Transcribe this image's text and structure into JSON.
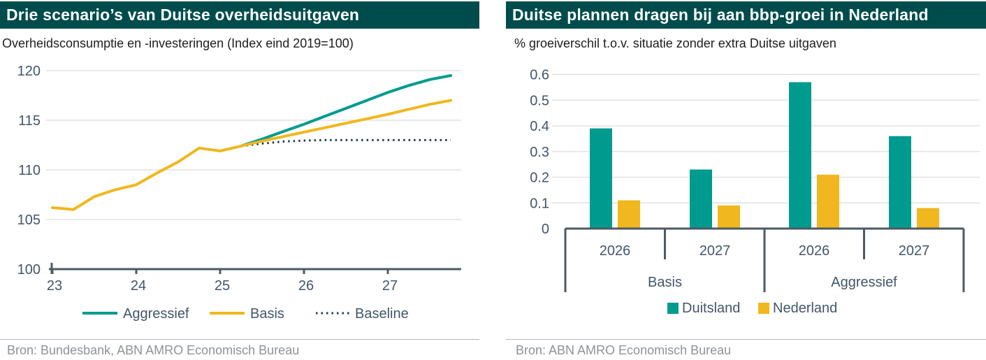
{
  "colors": {
    "header_bg": "#004c4c",
    "header_text": "#ffffff",
    "teal": "#009b8f",
    "yellow": "#f0b81e",
    "baseline_dotted": "#1d3c50",
    "axis_dark": "#4d5a63",
    "tick_text": "#42566a",
    "gridline": "#e2e2e2",
    "subtitle_text": "#1d1d1d",
    "source_text": "#8e9397"
  },
  "left_panel": {
    "title": "Drie scenario’s van Duitse overheidsuitgaven",
    "subtitle": "Overheidsconsumptie en -investeringen (Index eind 2019=100)",
    "source": "Bron: Bundesbank, ABN AMRO Economisch Bureau"
  },
  "right_panel": {
    "title": "Duitse plannen dragen bij aan bbp-groei in Nederland",
    "subtitle": "% groeiverschil t.o.v. situatie zonder extra Duitse uitgaven",
    "source": "Bron: ABN AMRO Economisch Bureau"
  },
  "chart_data": [
    {
      "type": "line",
      "title": "Drie scenario's van Duitse overheidsuitgaven",
      "subtitle": "Overheidsconsumptie en -investeringen (Index eind 2019=100)",
      "x_ticks": [
        23,
        24,
        25,
        26,
        27
      ],
      "y_ticks": [
        100,
        105,
        110,
        115,
        120
      ],
      "xlim": [
        23,
        27.85
      ],
      "ylim": [
        100,
        120
      ],
      "grid": "horizontal",
      "legend_position": "bottom",
      "series": [
        {
          "name": "Baseline",
          "style": "dotted",
          "color": "#1d3c50",
          "x": [
            25.25,
            25.5,
            25.75,
            26.0,
            26.25,
            26.5,
            26.75,
            27.0,
            27.25,
            27.5,
            27.75
          ],
          "values": [
            112.4,
            112.65,
            112.85,
            112.95,
            113.0,
            113.0,
            113.0,
            113.0,
            113.0,
            113.0,
            113.0
          ]
        },
        {
          "name": "Aggressief",
          "style": "solid",
          "color": "#009b8f",
          "x": [
            25.25,
            25.5,
            25.75,
            26.0,
            26.25,
            26.5,
            26.75,
            27.0,
            27.25,
            27.5,
            27.75
          ],
          "values": [
            112.4,
            113.1,
            113.85,
            114.6,
            115.4,
            116.2,
            117.0,
            117.8,
            118.5,
            119.1,
            119.5
          ]
        },
        {
          "name": "Basis",
          "style": "solid",
          "color": "#f0b81e",
          "x": [
            23.0,
            23.25,
            23.5,
            23.75,
            24.0,
            24.25,
            24.5,
            24.75,
            25.0,
            25.25,
            25.5,
            25.75,
            26.0,
            26.25,
            26.5,
            26.75,
            27.0,
            27.25,
            27.5,
            27.75
          ],
          "values": [
            106.2,
            106.0,
            107.3,
            108.0,
            108.5,
            109.7,
            110.8,
            112.2,
            111.9,
            112.4,
            112.9,
            113.35,
            113.8,
            114.25,
            114.7,
            115.15,
            115.6,
            116.1,
            116.6,
            117.0
          ]
        }
      ],
      "legend_order": [
        "Aggressief",
        "Basis",
        "Baseline"
      ]
    },
    {
      "type": "bar",
      "title": "Duitse plannen dragen bij aan bbp-groei in Nederland",
      "subtitle": "% groeiverschil t.o.v. situatie zonder extra Duitse uitgaven",
      "categories": [
        "2026",
        "2027",
        "2026",
        "2027"
      ],
      "group_labels": [
        "Basis",
        "Aggressief"
      ],
      "series": [
        {
          "name": "Duitsland",
          "color": "#009b8f",
          "values": [
            0.39,
            0.23,
            0.57,
            0.36
          ]
        },
        {
          "name": "Nederland",
          "color": "#f0b81e",
          "values": [
            0.11,
            0.09,
            0.21,
            0.08
          ]
        }
      ],
      "y_ticks": [
        0,
        0.1,
        0.2,
        0.3,
        0.4,
        0.5,
        0.6
      ],
      "ylim": [
        0,
        0.6
      ],
      "grid": "horizontal",
      "legend_position": "bottom"
    }
  ]
}
